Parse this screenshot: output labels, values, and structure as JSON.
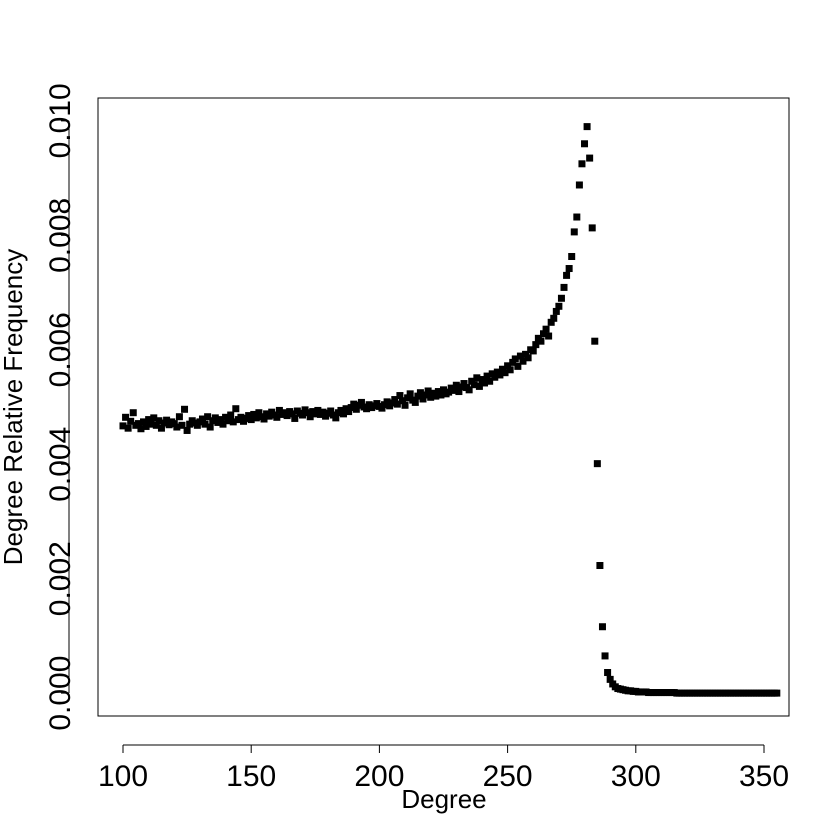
{
  "chart_data": {
    "type": "scatter",
    "x_label": "Degree",
    "y_label": "Degree Relative Frequency",
    "color": "#000000",
    "grid": false,
    "xlim": [
      90.25,
      359.75
    ],
    "ylim": [
      -0.0004,
      0.0104
    ],
    "xticks": [
      100,
      150,
      200,
      250,
      300,
      350
    ],
    "yticks": [
      {
        "value": 0,
        "label": "0.000"
      },
      {
        "value": 0.002,
        "label": "0.002"
      },
      {
        "value": 0.004,
        "label": "0.004"
      },
      {
        "value": 0.006,
        "label": "0.006"
      },
      {
        "value": 0.008,
        "label": "0.008"
      },
      {
        "value": 0.01,
        "label": "0.010"
      }
    ],
    "x": [
      100,
      101,
      102,
      103,
      104,
      105,
      106,
      107,
      108,
      109,
      110,
      111,
      112,
      113,
      114,
      115,
      116,
      117,
      118,
      119,
      120,
      121,
      122,
      123,
      124,
      125,
      126,
      127,
      128,
      129,
      130,
      131,
      132,
      133,
      134,
      135,
      136,
      137,
      138,
      139,
      140,
      141,
      142,
      143,
      144,
      145,
      146,
      147,
      148,
      149,
      150,
      151,
      152,
      153,
      154,
      155,
      156,
      157,
      158,
      159,
      160,
      161,
      162,
      163,
      164,
      165,
      166,
      167,
      168,
      169,
      170,
      171,
      172,
      173,
      174,
      175,
      176,
      177,
      178,
      179,
      180,
      181,
      182,
      183,
      184,
      185,
      186,
      187,
      188,
      189,
      190,
      191,
      192,
      193,
      194,
      195,
      196,
      197,
      198,
      199,
      200,
      201,
      202,
      203,
      204,
      205,
      206,
      207,
      208,
      209,
      210,
      211,
      212,
      213,
      214,
      215,
      216,
      217,
      218,
      219,
      220,
      221,
      222,
      223,
      224,
      225,
      226,
      227,
      228,
      229,
      230,
      231,
      232,
      233,
      234,
      235,
      236,
      237,
      238,
      239,
      240,
      241,
      242,
      243,
      244,
      245,
      246,
      247,
      248,
      249,
      250,
      251,
      252,
      253,
      254,
      255,
      256,
      257,
      258,
      259,
      260,
      261,
      262,
      263,
      264,
      265,
      266,
      267,
      268,
      269,
      270,
      271,
      272,
      273,
      274,
      275,
      276,
      277,
      278,
      279,
      280,
      281,
      282,
      283,
      284,
      285,
      286,
      287,
      288,
      289,
      290,
      291,
      292,
      293,
      294,
      295,
      296,
      297,
      298,
      299,
      300,
      301,
      302,
      303,
      304,
      305,
      306,
      307,
      308,
      309,
      310,
      311,
      312,
      313,
      314,
      315,
      316,
      317,
      318,
      319,
      320,
      321,
      322,
      323,
      324,
      325,
      326,
      327,
      328,
      329,
      330,
      331,
      332,
      333,
      334,
      335,
      336,
      337,
      338,
      339,
      340,
      341,
      342,
      343,
      344,
      345,
      346,
      347,
      348,
      349,
      350,
      351,
      352,
      353,
      354,
      355
    ],
    "values": [
      0.00467,
      0.00482,
      0.00463,
      0.00475,
      0.0049,
      0.00468,
      0.00471,
      0.00462,
      0.00474,
      0.00466,
      0.00478,
      0.0047,
      0.00481,
      0.00468,
      0.00476,
      0.00463,
      0.00472,
      0.00477,
      0.00469,
      0.00474,
      0.00471,
      0.00465,
      0.00483,
      0.00468,
      0.00496,
      0.00459,
      0.0047,
      0.00476,
      0.00472,
      0.00468,
      0.00474,
      0.00479,
      0.0047,
      0.00483,
      0.00465,
      0.00476,
      0.00481,
      0.00473,
      0.00478,
      0.0047,
      0.00482,
      0.00476,
      0.00486,
      0.00474,
      0.00497,
      0.00478,
      0.00482,
      0.00475,
      0.0048,
      0.00485,
      0.00478,
      0.00487,
      0.00481,
      0.0049,
      0.00483,
      0.00479,
      0.00488,
      0.00484,
      0.00491,
      0.00486,
      0.00482,
      0.00494,
      0.00487,
      0.0049,
      0.00485,
      0.00492,
      0.00488,
      0.0048,
      0.00493,
      0.00489,
      0.00486,
      0.00495,
      0.0049,
      0.00483,
      0.00492,
      0.00488,
      0.00494,
      0.00487,
      0.00491,
      0.00484,
      0.00489,
      0.00493,
      0.00486,
      0.00481,
      0.0049,
      0.00494,
      0.00488,
      0.00497,
      0.00492,
      0.00499,
      0.00505,
      0.00496,
      0.00503,
      0.00508,
      0.005,
      0.00497,
      0.00504,
      0.00499,
      0.00502,
      0.00506,
      0.00501,
      0.00498,
      0.00504,
      0.00509,
      0.00502,
      0.00507,
      0.00513,
      0.00505,
      0.0052,
      0.00511,
      0.00503,
      0.00516,
      0.00523,
      0.00512,
      0.00508,
      0.00519,
      0.00525,
      0.00514,
      0.00521,
      0.00528,
      0.00517,
      0.00524,
      0.00519,
      0.00527,
      0.00521,
      0.0053,
      0.00523,
      0.00526,
      0.00533,
      0.00529,
      0.00538,
      0.00527,
      0.00535,
      0.00541,
      0.00534,
      0.0053,
      0.00545,
      0.00539,
      0.00551,
      0.00536,
      0.00548,
      0.00542,
      0.00554,
      0.00545,
      0.00558,
      0.00552,
      0.00561,
      0.00556,
      0.00566,
      0.0056,
      0.00572,
      0.00565,
      0.00578,
      0.00584,
      0.00571,
      0.00589,
      0.0058,
      0.00592,
      0.00586,
      0.006,
      0.00598,
      0.00609,
      0.0062,
      0.00615,
      0.00628,
      0.00636,
      0.00624,
      0.00648,
      0.00655,
      0.00667,
      0.00676,
      0.0069,
      0.00709,
      0.0073,
      0.00742,
      0.00763,
      0.00806,
      0.00832,
      0.00888,
      0.00925,
      0.0096,
      0.0099,
      0.00935,
      0.00813,
      0.00615,
      0.00401,
      0.00223,
      0.00116,
      0.00065,
      0.00036,
      0.00024,
      0.00016,
      0.00011,
      8e-05,
      7e-05,
      6e-05,
      5e-05,
      4e-05,
      4e-05,
      3e-05,
      3e-05,
      2e-05,
      2e-05,
      2e-05,
      2e-05,
      1e-05,
      1e-05,
      1e-05,
      1e-05,
      1e-05,
      1e-05,
      1e-05,
      1e-05,
      1e-05,
      1e-05,
      1e-05,
      0,
      0,
      0,
      0,
      0,
      0,
      0,
      0,
      0,
      0,
      0,
      0,
      0,
      0,
      0,
      0,
      0,
      0,
      0,
      0,
      0,
      0,
      0,
      0,
      0,
      0,
      0,
      0,
      0,
      0,
      0,
      0,
      0,
      0,
      0,
      0,
      0,
      0,
      0,
      0
    ]
  }
}
